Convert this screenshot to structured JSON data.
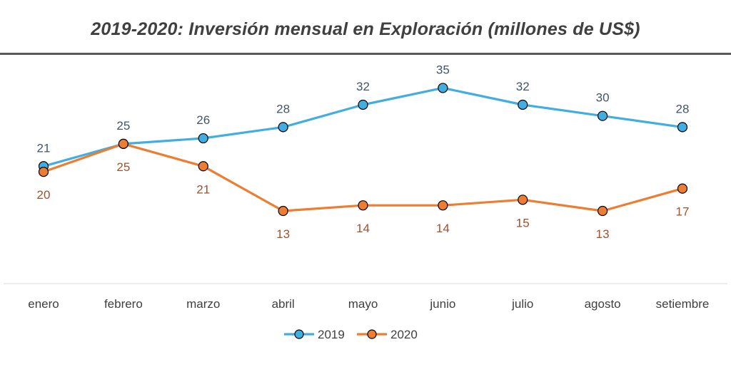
{
  "chart_data": {
    "type": "line",
    "title": "2019-2020: Inversión mensual en Exploración (millones de US$)",
    "categories": [
      "enero",
      "febrero",
      "marzo",
      "abril",
      "mayo",
      "junio",
      "julio",
      "agosto",
      "setiembre"
    ],
    "series": [
      {
        "name": "2019",
        "color": "#41ADE1",
        "label_color": "#44546A",
        "label_position": "above",
        "values": [
          21,
          25,
          26,
          28,
          32,
          35,
          32,
          30,
          28
        ],
        "labels": [
          "21",
          "25",
          "26",
          "28",
          "32",
          "35",
          "32",
          "30",
          "28"
        ]
      },
      {
        "name": "2020",
        "color": "#ED7D31",
        "label_color": "#A0522D",
        "label_position": "below",
        "values": [
          20,
          25,
          21,
          13,
          14,
          14,
          15,
          13,
          17
        ],
        "labels": [
          "20",
          "25",
          "21",
          "13",
          "14",
          "14",
          "15",
          "13",
          "17"
        ]
      }
    ],
    "ylim": [
      0,
      45
    ],
    "grid": false,
    "legend": "bottom"
  }
}
